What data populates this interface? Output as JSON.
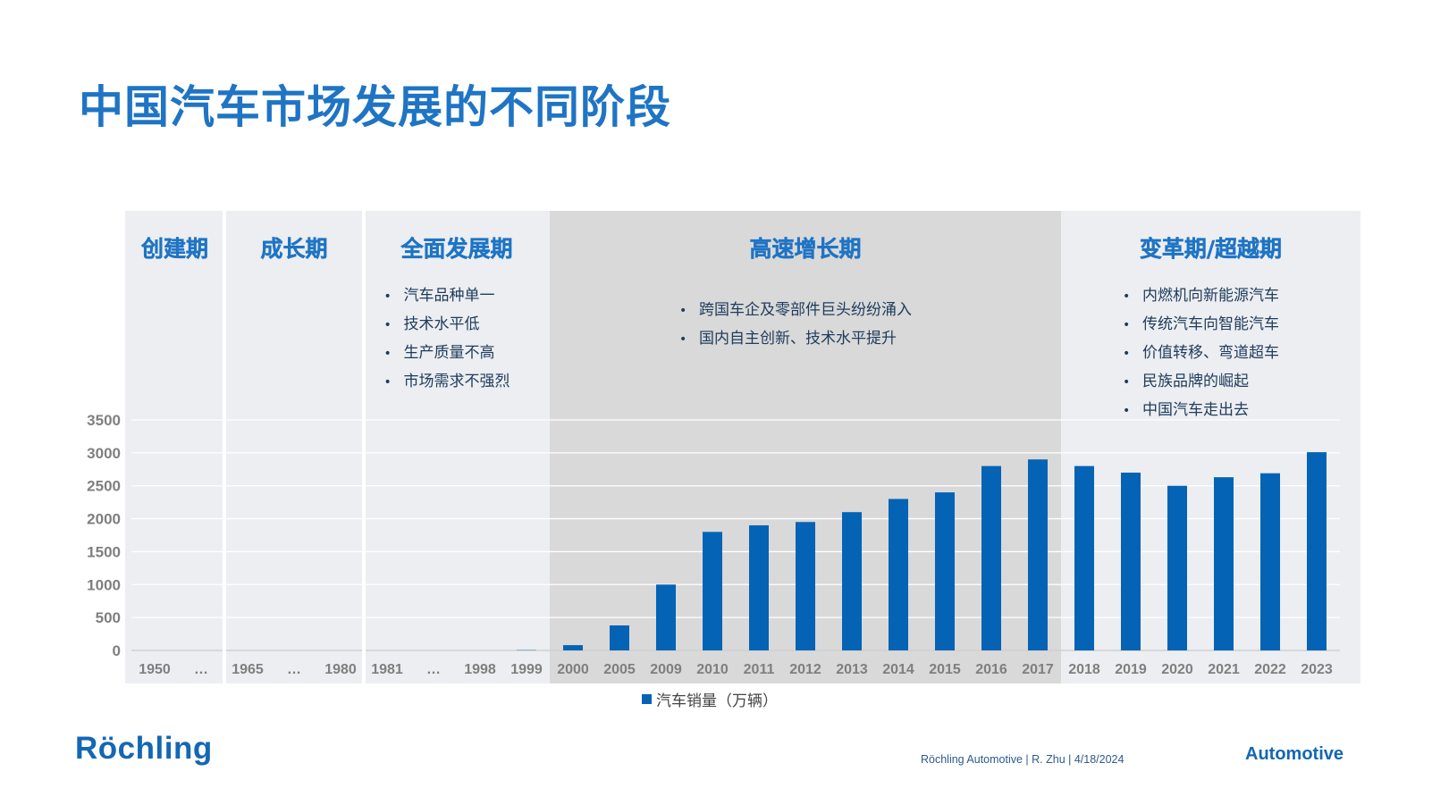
{
  "slide": {
    "title": "中国汽车市场发展的不同阶段"
  },
  "colors": {
    "bar": "#0563b5",
    "band_light": "#eceef1",
    "band_dark": "#d9d9d9",
    "title": "#1f74c4"
  },
  "phases": [
    {
      "name": "创建期",
      "bullets": []
    },
    {
      "name": "成长期",
      "bullets": []
    },
    {
      "name": "全面发展期",
      "bullets": [
        "汽车品种单一",
        "技术水平低",
        "生产质量不高",
        "市场需求不强烈"
      ]
    },
    {
      "name": "高速增长期",
      "bullets": [
        "跨国车企及零部件巨头纷纷涌入",
        "国内自主创新、技术水平提升"
      ]
    },
    {
      "name": "变革期/超越期",
      "bullets": [
        "内燃机向新能源汽车",
        "传统汽车向智能汽车",
        "价值转移、弯道超车",
        "民族品牌的崛起",
        "中国汽车走出去"
      ]
    }
  ],
  "bullet_symbol": "•",
  "chart_data": {
    "type": "bar",
    "categories": [
      "1950",
      "…",
      "1965",
      "…",
      "1980",
      "1981",
      "…",
      "1998",
      "1999",
      "2000",
      "2005",
      "2009",
      "2010",
      "2011",
      "2012",
      "2013",
      "2014",
      "2015",
      "2016",
      "2017",
      "2018",
      "2019",
      "2020",
      "2021",
      "2022",
      "2023"
    ],
    "series": [
      {
        "name": "汽车销量（万辆）",
        "values": [
          0,
          0,
          0,
          0,
          0,
          0,
          0,
          0,
          5,
          80,
          380,
          1000,
          1800,
          1900,
          1950,
          2100,
          2300,
          2400,
          2800,
          2900,
          2800,
          2700,
          2500,
          2630,
          2690,
          3010
        ]
      }
    ],
    "ylim": [
      0,
      3500
    ],
    "yticks": [
      0,
      500,
      1000,
      1500,
      2000,
      2500,
      3000,
      3500
    ],
    "grid": true,
    "legend": "bottom-center"
  },
  "footer": {
    "logo": "Röchling",
    "info": "Röchling Automotive | R. Zhu |   4/18/2024",
    "brand": "Automotive"
  }
}
